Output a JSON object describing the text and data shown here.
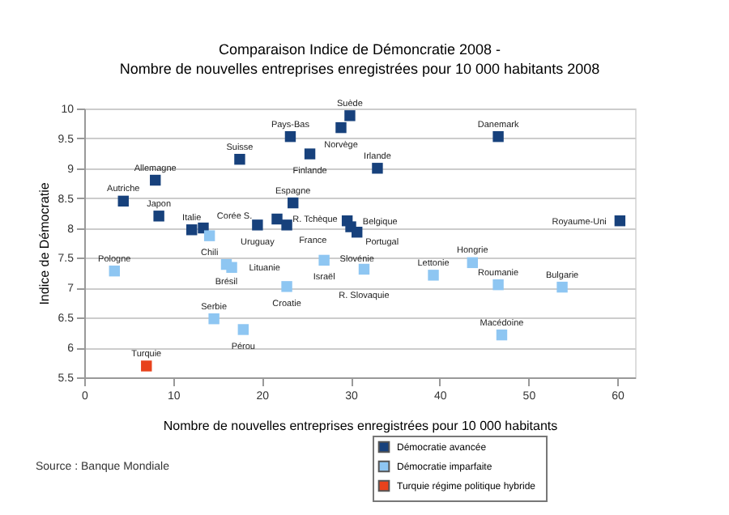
{
  "chart_data": {
    "type": "scatter",
    "title": "Comparaison Indice de Démoncratie  2008 -",
    "subtitle": "Nombre de nouvelles entreprises enregistrées pour 10 000 habitants 2008",
    "xlabel": "Nombre de nouvelles entreprises enregistrées pour 10 000 habitants",
    "ylabel": "Indice de Démocratie",
    "xlim": [
      0,
      62
    ],
    "xticks": [
      0,
      10,
      20,
      30,
      40,
      50,
      60
    ],
    "ylim": [
      5.5,
      10
    ],
    "yticks": [
      5.5,
      6,
      6.5,
      7,
      7.5,
      8,
      8.5,
      9,
      9.5,
      10
    ],
    "grid": "y",
    "legend": "bottom right",
    "marker": "square",
    "series": [
      {
        "name": "Démocratie avancée",
        "color": "#17417c",
        "x": [
          29.9,
          28.9,
          23.2,
          46.6,
          25.4,
          17.5,
          33.0,
          8.0,
          4.4,
          8.4,
          12.1,
          13.4,
          19.5,
          21.7,
          23.5,
          22.8,
          29.6,
          30.0,
          30.7,
          60.3
        ],
        "values": [
          9.88,
          9.68,
          9.53,
          9.53,
          9.24,
          9.15,
          9.0,
          8.8,
          8.45,
          8.2,
          7.97,
          8.0,
          8.05,
          8.15,
          8.42,
          8.05,
          8.12,
          8.02,
          7.93,
          8.12
        ]
      },
      {
        "name": "Démocratie imparfaite",
        "color": "#8ec6f2",
        "x": [
          14.1,
          27.0,
          31.5,
          16.0,
          16.6,
          3.4,
          22.8,
          14.6,
          17.9,
          39.3,
          43.7,
          46.6,
          53.8,
          47.0
        ],
        "values": [
          7.87,
          7.46,
          7.31,
          7.39,
          7.34,
          7.28,
          7.02,
          6.48,
          6.3,
          7.21,
          7.42,
          7.05,
          7.01,
          6.21
        ]
      },
      {
        "name": "Turquie   régime politique hybride",
        "color": "#e8421c",
        "x": [
          7.0
        ],
        "values": [
          5.69
        ]
      }
    ],
    "annotations": [
      {
        "text": "Suède",
        "x": 29.9,
        "y": 9.88
      },
      {
        "text": "Norvège",
        "x": 28.9,
        "y": 9.68
      },
      {
        "text": "Pays-Bas",
        "x": 23.2,
        "y": 9.53
      },
      {
        "text": "Danemark",
        "x": 46.6,
        "y": 9.53
      },
      {
        "text": "Finlande",
        "x": 25.4,
        "y": 9.24
      },
      {
        "text": "Suisse",
        "x": 17.5,
        "y": 9.15
      },
      {
        "text": "Irlande",
        "x": 33.0,
        "y": 9.0
      },
      {
        "text": "Allemagne",
        "x": 8.0,
        "y": 8.8
      },
      {
        "text": "Autriche",
        "x": 4.4,
        "y": 8.45
      },
      {
        "text": "Japon",
        "x": 8.4,
        "y": 8.2
      },
      {
        "text": "Italie",
        "x": 12.1,
        "y": 7.97
      },
      {
        "text": "Corée S.",
        "x": 13.4,
        "y": 8.0
      },
      {
        "text": "Uruguay",
        "x": 19.5,
        "y": 8.05
      },
      {
        "text": "R. Tchèque",
        "x": 21.7,
        "y": 8.15
      },
      {
        "text": "Espagne",
        "x": 23.5,
        "y": 8.42
      },
      {
        "text": "France",
        "x": 22.8,
        "y": 8.05
      },
      {
        "text": "Belgique",
        "x": 29.6,
        "y": 8.12
      },
      {
        "text": "Portugal",
        "x": 30.0,
        "y": 8.02
      },
      {
        "text": "Slovénie",
        "x": 30.7,
        "y": 7.93
      },
      {
        "text": "Royaume-Uni",
        "x": 60.3,
        "y": 8.12
      },
      {
        "text": "Chili",
        "x": 14.1,
        "y": 7.87
      },
      {
        "text": "Israël",
        "x": 27.0,
        "y": 7.46
      },
      {
        "text": "R. Slovaquie",
        "x": 31.5,
        "y": 7.31
      },
      {
        "text": "Brésil",
        "x": 16.0,
        "y": 7.39
      },
      {
        "text": "Lituanie",
        "x": 16.6,
        "y": 7.34
      },
      {
        "text": "Pologne",
        "x": 3.4,
        "y": 7.28
      },
      {
        "text": "Croatie",
        "x": 22.8,
        "y": 7.02
      },
      {
        "text": "Serbie",
        "x": 14.6,
        "y": 6.48
      },
      {
        "text": "Pérou",
        "x": 17.9,
        "y": 6.3
      },
      {
        "text": "Lettonie",
        "x": 39.3,
        "y": 7.21
      },
      {
        "text": "Hongrie",
        "x": 43.7,
        "y": 7.42
      },
      {
        "text": "Roumanie",
        "x": 46.6,
        "y": 7.05
      },
      {
        "text": "Bulgarie",
        "x": 53.8,
        "y": 7.01
      },
      {
        "text": "Macédoine",
        "x": 47.0,
        "y": 6.21
      },
      {
        "text": "Turquie",
        "x": 7.0,
        "y": 5.69
      },
      "Source : Banque Mondiale"
    ]
  }
}
